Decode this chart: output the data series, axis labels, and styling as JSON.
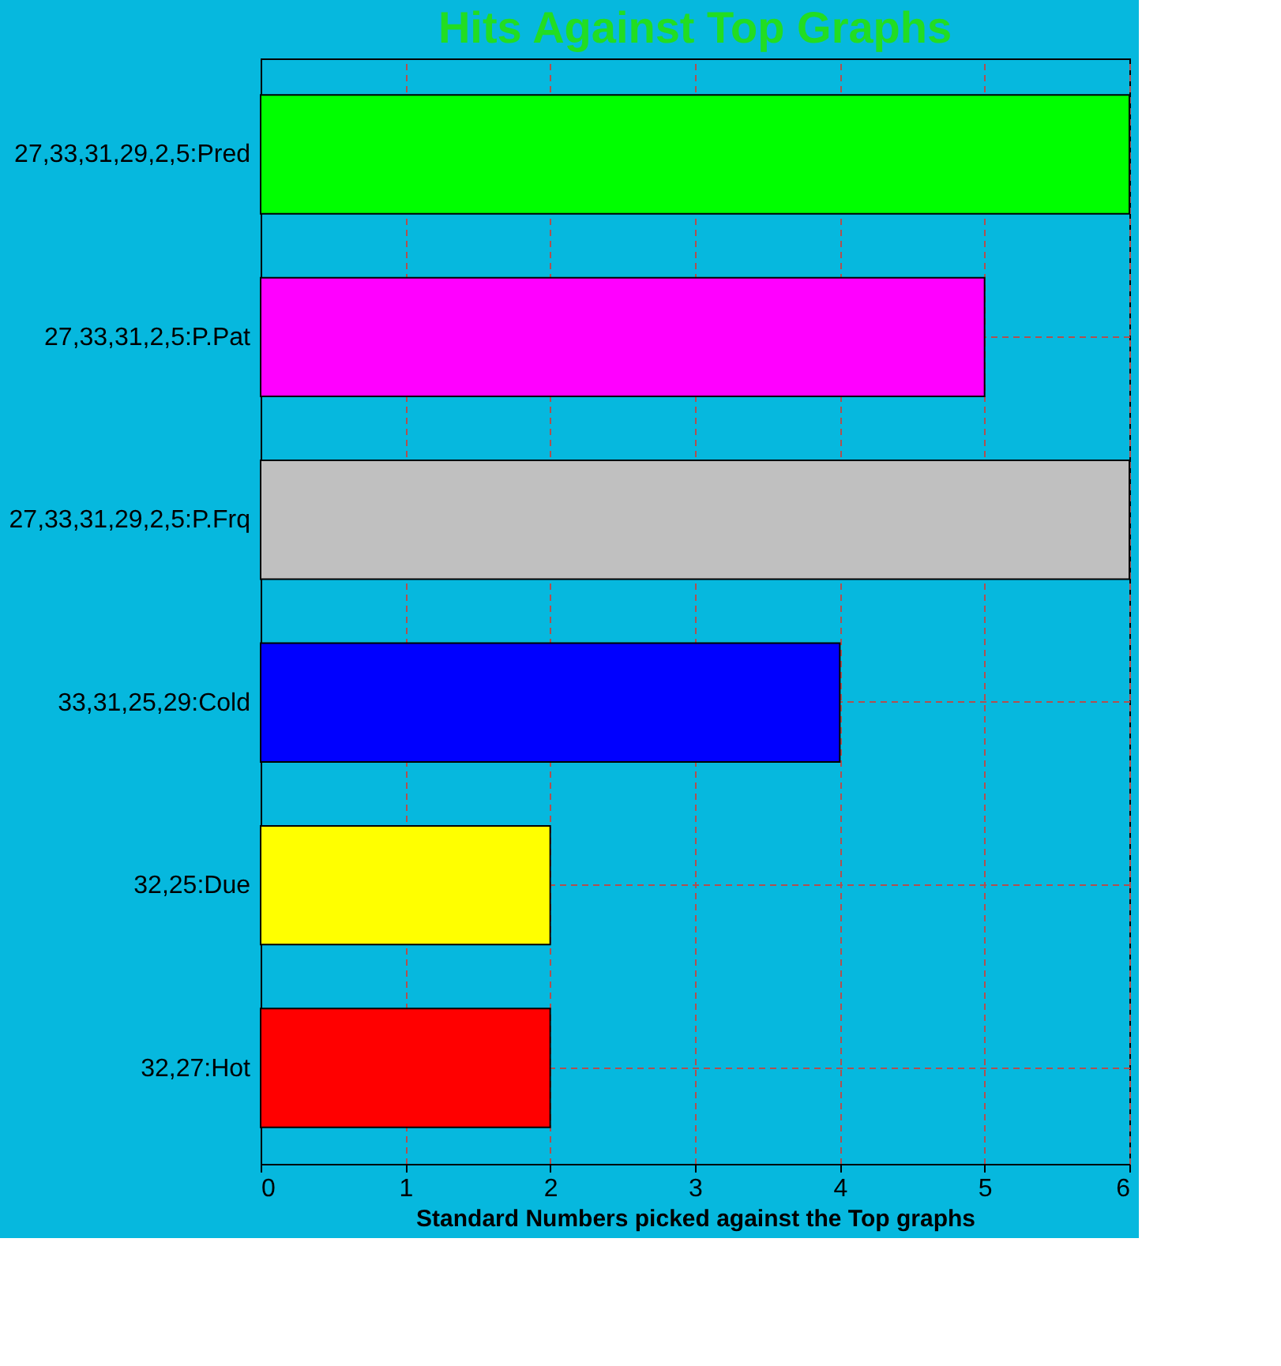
{
  "chart_data": {
    "type": "bar",
    "orientation": "horizontal",
    "title": "Hits Against Top Graphs",
    "xlabel": "Standard Numbers picked against the Top graphs",
    "categories": [
      "27,33,31,29,2,5:Pred",
      "27,33,31,2,5:P.Pat",
      "27,33,31,29,2,5:P.Frq",
      "33,31,25,29:Cold",
      "32,25:Due",
      "32,27:Hot"
    ],
    "values": [
      6,
      5,
      6,
      4,
      2,
      2
    ],
    "colors": [
      "#00ff00",
      "#ff00ff",
      "#c0c0c0",
      "#0000ff",
      "#ffff00",
      "#ff0000"
    ],
    "xlim": [
      0,
      6
    ],
    "xticks": [
      0,
      1,
      2,
      3,
      4,
      5,
      6
    ],
    "grid": true,
    "line_style": "dashed"
  }
}
